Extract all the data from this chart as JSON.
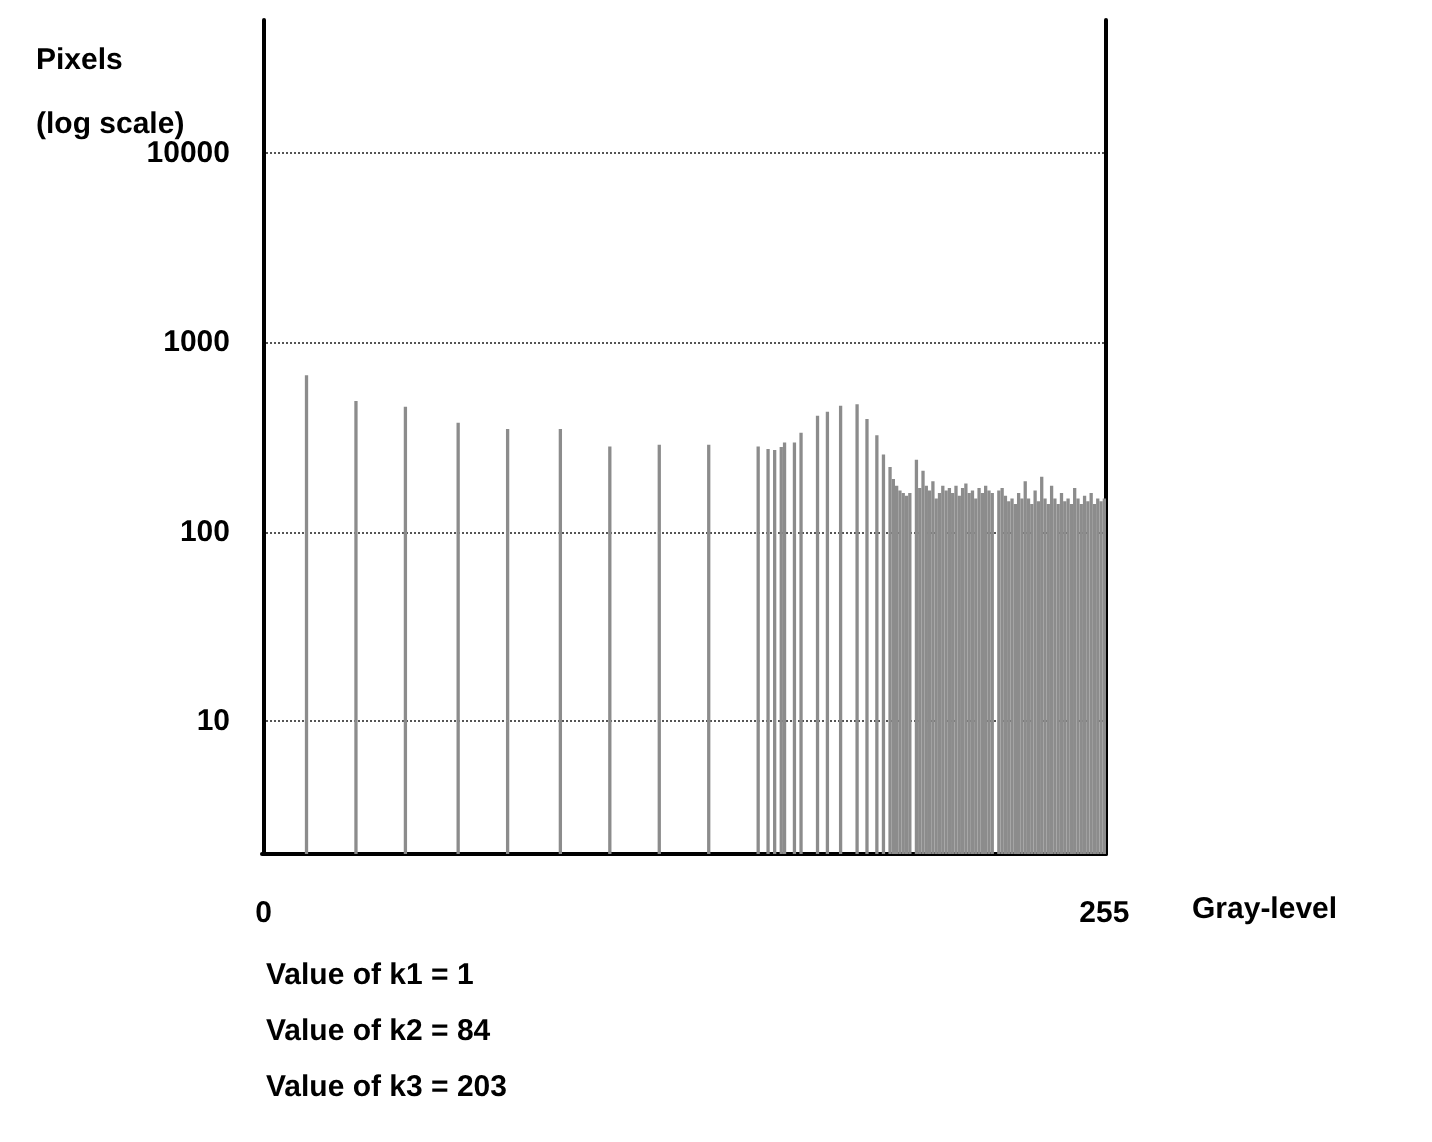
{
  "chart_data": {
    "type": "bar",
    "xlabel": "Gray-level",
    "ylabel": "Pixels (log scale)",
    "annotations": [
      "Value of k1 = 1",
      "Value of k2 = 84",
      "Value of k3 = 203"
    ],
    "color": "#8c8c8c",
    "log": "y",
    "grid": "y",
    "xlim": [
      -0.5,
      255.5
    ],
    "xticks": [
      0,
      255
    ],
    "ylim": [
      2,
      50000
    ],
    "yticks": [
      10,
      100,
      1000,
      10000
    ],
    "x": [
      13,
      28,
      43,
      59,
      74,
      90,
      105,
      120,
      135,
      150,
      153,
      155,
      157,
      158,
      161,
      163,
      168,
      171,
      175,
      180,
      183,
      186,
      188,
      190,
      191,
      192,
      193,
      194,
      195,
      196,
      198,
      199,
      200,
      201,
      202,
      203,
      204,
      205,
      206,
      207,
      208,
      209,
      210,
      211,
      212,
      213,
      214,
      215,
      216,
      217,
      218,
      219,
      220,
      221,
      223,
      224,
      225,
      226,
      227,
      228,
      229,
      230,
      231,
      232,
      233,
      234,
      235,
      236,
      237,
      238,
      239,
      240,
      241,
      242,
      243,
      244,
      245,
      246,
      247,
      248,
      249,
      250,
      251,
      252,
      253,
      254,
      255
    ],
    "values": [
      670,
      490,
      457,
      376,
      348,
      348,
      282,
      288,
      288,
      282,
      273,
      270,
      280,
      296,
      296,
      333,
      409,
      430,
      462,
      470,
      393,
      323,
      256,
      220,
      190,
      175,
      165,
      160,
      155,
      160,
      240,
      170,
      210,
      175,
      165,
      185,
      150,
      160,
      175,
      165,
      170,
      160,
      175,
      155,
      170,
      180,
      160,
      165,
      150,
      170,
      160,
      175,
      165,
      160,
      165,
      170,
      155,
      145,
      150,
      140,
      160,
      150,
      185,
      150,
      140,
      165,
      145,
      195,
      150,
      140,
      175,
      150,
      140,
      160,
      145,
      150,
      140,
      170,
      150,
      140,
      155,
      145,
      160,
      140,
      150,
      145,
      150
    ]
  }
}
